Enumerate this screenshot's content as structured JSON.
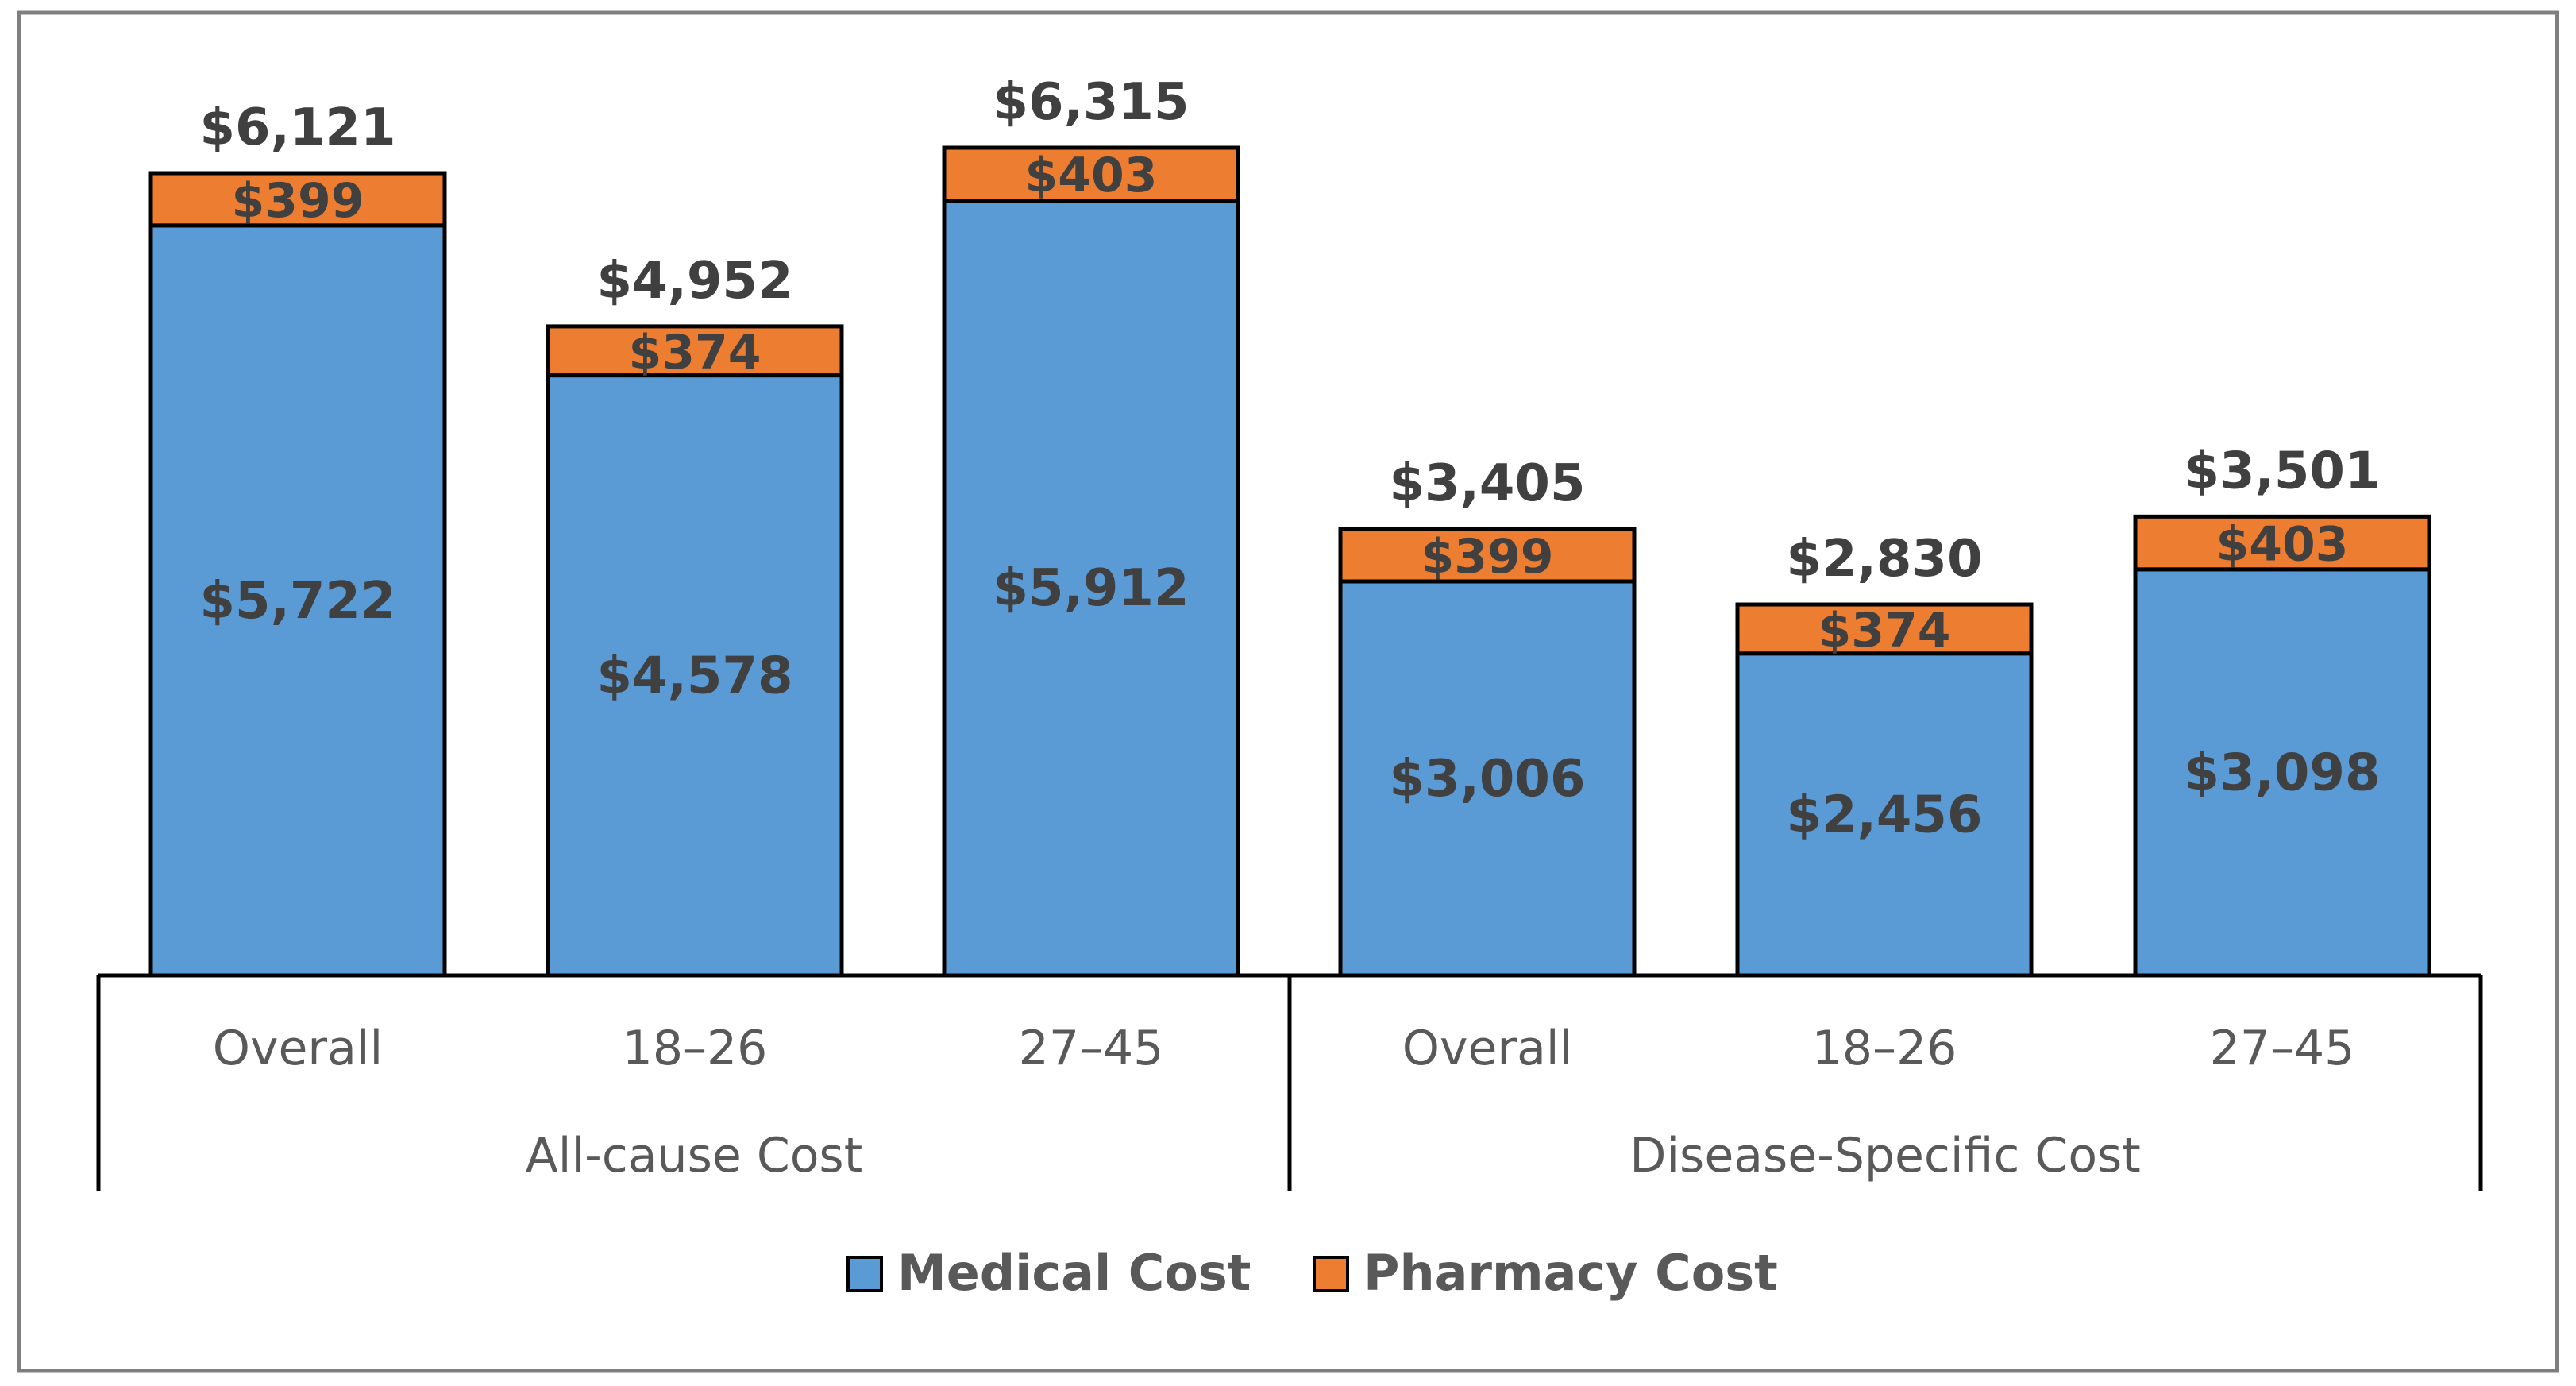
{
  "chart_data": {
    "type": "bar",
    "stacked": true,
    "title": "",
    "xlabel": "",
    "ylabel": "",
    "groups": [
      {
        "label": "All-cause Cost",
        "categories": [
          "Overall",
          "18–26",
          "27–45"
        ]
      },
      {
        "label": "Disease-Specific Cost",
        "categories": [
          "Overall",
          "18–26",
          "27–45"
        ]
      }
    ],
    "categories": [
      "Overall",
      "18–26",
      "27–45",
      "Overall",
      "18–26",
      "27–45"
    ],
    "series": [
      {
        "name": "Medical Cost",
        "color": "#5b9bd5",
        "values": [
          5722,
          4578,
          5912,
          3006,
          2456,
          3098
        ],
        "labels": [
          "$5,722",
          "$4,578",
          "$5,912",
          "$3,006",
          "$2,456",
          "$3,098"
        ]
      },
      {
        "name": "Pharmacy Cost",
        "color": "#ed7d31",
        "values": [
          399,
          374,
          403,
          399,
          374,
          403
        ],
        "labels": [
          "$399",
          "$374",
          "$403",
          "$399",
          "$374",
          "$403"
        ]
      }
    ],
    "totals": [
      6121,
      4952,
      6315,
      3405,
      2830,
      3501
    ],
    "total_labels": [
      "$6,121",
      "$4,952",
      "$6,315",
      "$3,405",
      "$2,830",
      "$3,501"
    ],
    "ylim": [
      0,
      7000
    ],
    "grid": false,
    "legend": "bottom"
  }
}
